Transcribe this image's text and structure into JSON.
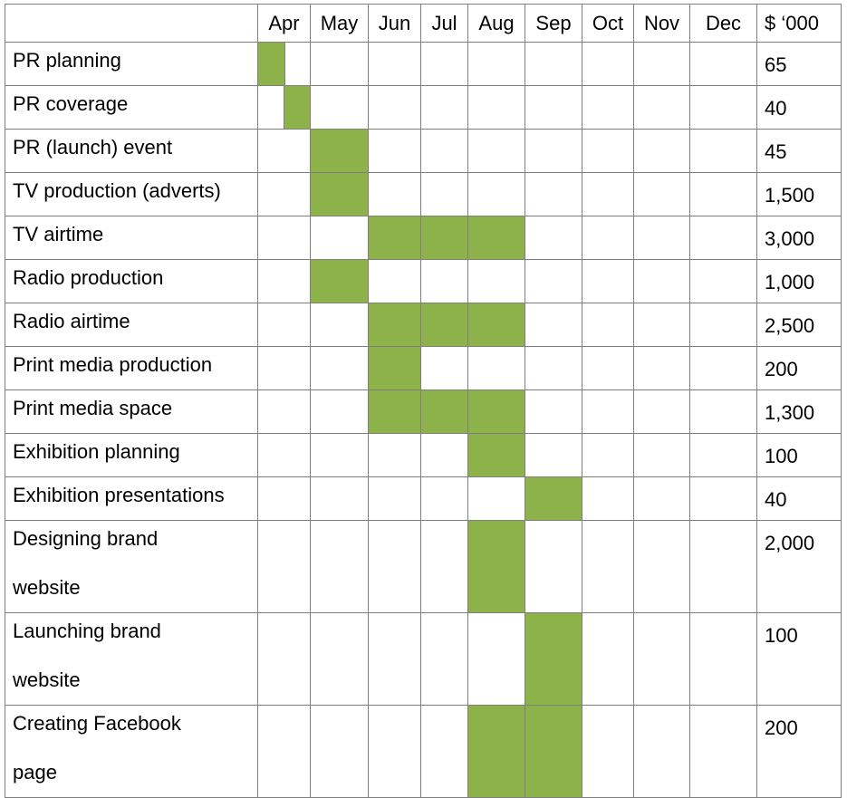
{
  "columns": {
    "months": [
      "Apr",
      "May",
      "Jun",
      "Jul",
      "Aug",
      "Sep",
      "Oct",
      "Nov",
      "Dec"
    ],
    "cost_header": "$ ‘000"
  },
  "rows": [
    {
      "task": "PR planning",
      "cost": "65",
      "active": [
        true,
        false,
        false,
        false,
        false,
        false,
        false,
        false,
        false
      ],
      "half": "left"
    },
    {
      "task": "PR coverage",
      "cost": "40",
      "active": [
        true,
        false,
        false,
        false,
        false,
        false,
        false,
        false,
        false
      ],
      "half": "right"
    },
    {
      "task": "PR (launch) event",
      "cost": "45",
      "active": [
        false,
        true,
        false,
        false,
        false,
        false,
        false,
        false,
        false
      ]
    },
    {
      "task": "TV production (adverts)",
      "cost": "1,500",
      "active": [
        false,
        true,
        false,
        false,
        false,
        false,
        false,
        false,
        false
      ]
    },
    {
      "task": "TV airtime",
      "cost": "3,000",
      "active": [
        false,
        false,
        true,
        true,
        true,
        false,
        false,
        false,
        false
      ]
    },
    {
      "task": "Radio production",
      "cost": "1,000",
      "active": [
        false,
        true,
        false,
        false,
        false,
        false,
        false,
        false,
        false
      ]
    },
    {
      "task": "Radio airtime",
      "cost": "2,500",
      "active": [
        false,
        false,
        true,
        true,
        true,
        false,
        false,
        false,
        false
      ]
    },
    {
      "task": "Print media production",
      "cost": "200",
      "active": [
        false,
        false,
        true,
        false,
        false,
        false,
        false,
        false,
        false
      ]
    },
    {
      "task": "Print media space",
      "cost": "1,300",
      "active": [
        false,
        false,
        true,
        true,
        true,
        false,
        false,
        false,
        false
      ]
    },
    {
      "task": "Exhibition planning",
      "cost": "100",
      "active": [
        false,
        false,
        false,
        false,
        true,
        false,
        false,
        false,
        false
      ]
    },
    {
      "task": "Exhibition presentations",
      "cost": "40",
      "active": [
        false,
        false,
        false,
        false,
        false,
        true,
        false,
        false,
        false
      ]
    },
    {
      "task": "Designing brand website",
      "cost": "2,000",
      "active": [
        false,
        false,
        false,
        false,
        true,
        false,
        false,
        false,
        false
      ],
      "tall": true
    },
    {
      "task": "Launching brand website",
      "cost": "100",
      "active": [
        false,
        false,
        false,
        false,
        false,
        true,
        false,
        false,
        false
      ],
      "tall": true
    },
    {
      "task": "Creating Facebook page",
      "cost": "200",
      "active": [
        false,
        false,
        false,
        false,
        true,
        true,
        false,
        false,
        false
      ],
      "tall": true
    }
  ],
  "colors": {
    "bar": "#8db24a",
    "grid": "#7f7f7f"
  }
}
